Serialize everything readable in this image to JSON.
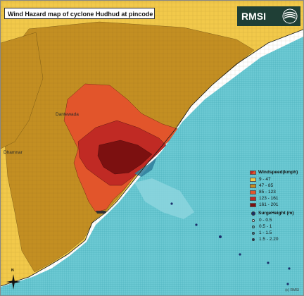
{
  "title": "Wind Hazard map of cyclone Hudhud at pincode Level",
  "logo": {
    "text": "RMSI",
    "icon": "swirl-logo-icon"
  },
  "legend": {
    "wind_title": "Windspeed(kmph)",
    "wind_classes": [
      {
        "label": "9 - 47",
        "color": "#f2c94a"
      },
      {
        "label": "47 - 85",
        "color": "#c38f22"
      },
      {
        "label": "85 - 123",
        "color": "#e2552b"
      },
      {
        "label": "123 - 161",
        "color": "#c02a24"
      },
      {
        "label": "161 - 201",
        "color": "#7c1010"
      }
    ],
    "surge_title": "SurgeHeight (m)",
    "surge_classes": [
      {
        "label": "0 - 0.5",
        "color": "#ffffff"
      },
      {
        "label": "0.5 - 1",
        "color": "#55c4cf"
      },
      {
        "label": "1 - 1.5",
        "color": "#2e7d9a"
      },
      {
        "label": "1.5 - 2.20",
        "color": "#1a2f6b"
      }
    ]
  },
  "places": [
    {
      "label": "Dantewada"
    },
    {
      "label": "Dhamnar"
    }
  ],
  "north_label": "N",
  "credit": "(c) RMSI",
  "colors": {
    "sea": "#5fc4cf",
    "ocean_white": "#ffffff",
    "boundary": "#3a3a3a"
  }
}
